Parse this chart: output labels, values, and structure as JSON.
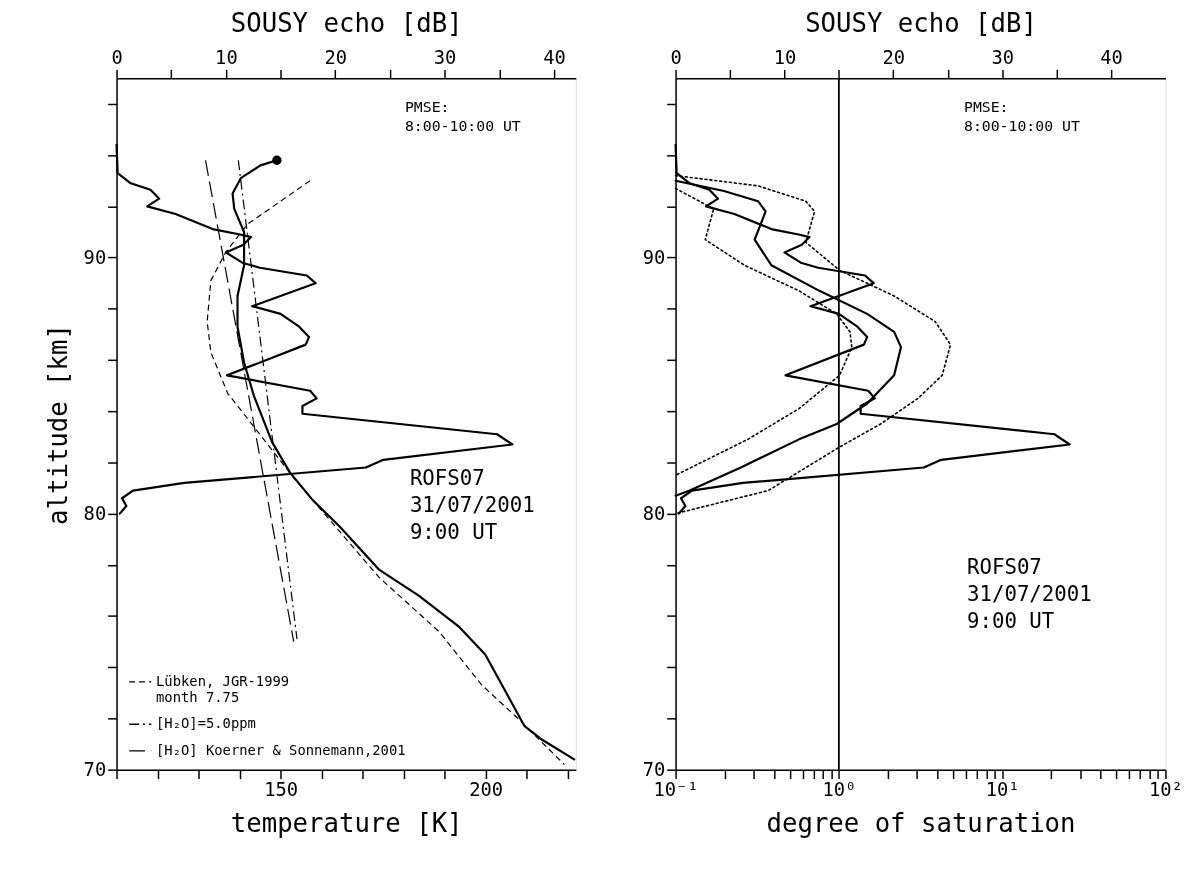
{
  "chart_data": [
    {
      "type": "line",
      "xlabel": "temperature [K]",
      "x2label": "SOUSY echo [dB]",
      "ylabel": "altitude [km]",
      "xlim": [
        110,
        222
      ],
      "xticks": [
        {
          "value": 110,
          "label": null
        },
        {
          "value": 120,
          "label": null
        },
        {
          "value": 130,
          "label": null
        },
        {
          "value": 140,
          "label": null
        },
        150,
        {
          "value": 160,
          "label": null
        },
        {
          "value": 170,
          "label": null
        },
        {
          "value": 180,
          "label": null
        },
        {
          "value": 190,
          "label": null
        },
        200,
        {
          "value": 210,
          "label": null
        },
        {
          "value": 220,
          "label": null
        }
      ],
      "x2lim": [
        0,
        42
      ],
      "x2ticks": [
        0,
        {
          "value": 5,
          "label": null
        },
        10,
        {
          "value": 15,
          "label": null
        },
        20,
        {
          "value": 25,
          "label": null
        },
        30,
        {
          "value": 35,
          "label": null
        },
        40
      ],
      "ylim": [
        70,
        97
      ],
      "yticks": [
        70,
        {
          "value": 72,
          "label": null
        },
        {
          "value": 74,
          "label": null
        },
        {
          "value": 76,
          "label": null
        },
        {
          "value": 78,
          "label": null
        },
        80,
        {
          "value": 82,
          "label": null
        },
        {
          "value": 84,
          "label": null
        },
        {
          "value": 86,
          "label": null
        },
        {
          "value": 88,
          "label": null
        },
        90,
        {
          "value": 92,
          "label": null
        },
        {
          "value": 94,
          "label": null
        },
        {
          "value": 96,
          "label": null
        }
      ],
      "grid": false,
      "legend": "bottom left",
      "annotations": [
        "PMSE:\n 8:00-10:00 UT",
        "ROFS07\n31/07/2001\n 9:00 UT"
      ],
      "series": [
        {
          "color": "#000000",
          "line_style": "solid",
          "axis": "x2",
          "x": [
            0,
            0.1,
            1.3,
            3.1,
            3.9,
            2.8,
            5.4,
            8.9,
            11.3,
            12.3,
            11.6,
            10.0,
            11.5,
            13.1,
            17.4,
            18.2,
            12.4,
            15.0,
            16.7,
            17.6,
            17.3,
            10.1,
            17.7,
            18.3,
            17.0,
            17.0,
            34.8,
            36.2,
            24.4,
            22.8,
            6.2,
            1.5,
            0.5,
            0.9,
            0.3
          ],
          "values": [
            94.4,
            93.3,
            92.9,
            92.65,
            92.3,
            92.0,
            91.7,
            91.1,
            90.9,
            90.8,
            90.5,
            90.2,
            89.8,
            89.6,
            89.3,
            89.0,
            88.1,
            87.8,
            87.3,
            86.9,
            86.6,
            85.4,
            84.8,
            84.5,
            84.2,
            83.9,
            83.1,
            82.7,
            82.1,
            81.8,
            81.2,
            80.9,
            80.6,
            80.3,
            80.0
          ]
        },
        {
          "color": "#000000",
          "line_style": "solid",
          "x": [
            149.1,
            145.1,
            140.3,
            138.3,
            138.7,
            141.1,
            141.1,
            139.5,
            139.5,
            141.1,
            143.5,
            147.9,
            152.3,
            158.0,
            164.4,
            174.1,
            183.7,
            193.4,
            199.9,
            204.7,
            209.5,
            213.5,
            221.6
          ],
          "values": [
            93.8,
            93.6,
            93.1,
            92.5,
            91.9,
            91.0,
            89.7,
            88.5,
            87.3,
            85.9,
            84.6,
            82.8,
            81.6,
            80.5,
            79.5,
            77.8,
            76.8,
            75.6,
            74.5,
            73.1,
            71.7,
            71.2,
            70.4
          ]
        },
        {
          "type": "scatter",
          "color": "#000000",
          "marker": "circle",
          "x": [
            149.1
          ],
          "values": [
            93.8
          ]
        },
        {
          "name": "Lübken, JGR-1999\nmonth 7.75",
          "color": "#000000",
          "line_style": "dashed",
          "x": [
            157.2,
            141.9,
            136.6,
            133.0,
            132.1,
            133.0,
            137.1,
            145.9,
            153.2,
            161.2,
            174.1,
            188.6,
            199.1,
            207.9,
            219.2
          ],
          "values": [
            93.0,
            91.3,
            90.2,
            89.1,
            87.5,
            86.3,
            84.7,
            82.9,
            81.4,
            79.9,
            77.5,
            75.4,
            73.3,
            72.0,
            70.2
          ]
        },
        {
          "name": "[H₂O]=5.0ppm",
          "color": "#000000",
          "line_style": "dashdot",
          "x": [
            139.7,
            154.0
          ],
          "values": [
            93.8,
            75.1
          ]
        },
        {
          "name": "[H₂O] Koerner & Sonnemann,2001",
          "color": "#000000",
          "line_style": "longdash",
          "x": [
            131.7,
            153.2
          ],
          "values": [
            93.8,
            75.0
          ]
        }
      ]
    },
    {
      "type": "line",
      "xlabel": "degree of saturation",
      "x2label": "SOUSY echo [dB]",
      "log": "x",
      "xlim": [
        0.1,
        100
      ],
      "xticks": [
        {
          "value": 0.1,
          "label": "10⁻¹"
        },
        {
          "value": 0.2,
          "label": null
        },
        {
          "value": 0.3,
          "label": null
        },
        {
          "value": 0.4,
          "label": null
        },
        {
          "value": 0.5,
          "label": null
        },
        {
          "value": 0.6,
          "label": null
        },
        {
          "value": 0.7,
          "label": null
        },
        {
          "value": 0.8,
          "label": null
        },
        {
          "value": 0.9,
          "label": null
        },
        {
          "value": 1,
          "label": "10⁰"
        },
        {
          "value": 2,
          "label": null
        },
        {
          "value": 3,
          "label": null
        },
        {
          "value": 4,
          "label": null
        },
        {
          "value": 5,
          "label": null
        },
        {
          "value": 6,
          "label": null
        },
        {
          "value": 7,
          "label": null
        },
        {
          "value": 8,
          "label": null
        },
        {
          "value": 9,
          "label": null
        },
        {
          "value": 10,
          "label": "10¹"
        },
        {
          "value": 20,
          "label": null
        },
        {
          "value": 30,
          "label": null
        },
        {
          "value": 40,
          "label": null
        },
        {
          "value": 50,
          "label": null
        },
        {
          "value": 60,
          "label": null
        },
        {
          "value": 70,
          "label": null
        },
        {
          "value": 80,
          "label": null
        },
        {
          "value": 90,
          "label": null
        },
        {
          "value": 100,
          "label": "10²"
        }
      ],
      "x2lim": [
        0,
        45
      ],
      "x2ticks": [
        0,
        {
          "value": 5,
          "label": null
        },
        10,
        {
          "value": 15,
          "label": null
        },
        20,
        {
          "value": 25,
          "label": null
        },
        30,
        {
          "value": 35,
          "label": null
        },
        40
      ],
      "ylim": [
        70,
        97
      ],
      "yticks": [
        70,
        {
          "value": 72,
          "label": null
        },
        {
          "value": 74,
          "label": null
        },
        {
          "value": 76,
          "label": null
        },
        {
          "value": 78,
          "label": null
        },
        80,
        {
          "value": 82,
          "label": null
        },
        {
          "value": 84,
          "label": null
        },
        {
          "value": 86,
          "label": null
        },
        {
          "value": 88,
          "label": null
        },
        90,
        {
          "value": 92,
          "label": null
        },
        {
          "value": 94,
          "label": null
        },
        {
          "value": 96,
          "label": null
        }
      ],
      "grid": false,
      "ref_lines": [
        {
          "axis": "x",
          "value": 1,
          "color": "#000000"
        }
      ],
      "annotations": [
        "PMSE:\n 8:00-10:00 UT",
        "ROFS07\n31/07/2001\n 9:00 UT"
      ],
      "series": [
        {
          "color": "#000000",
          "line_style": "solid",
          "axis": "x2",
          "x": [
            0,
            0.1,
            1.3,
            3.1,
            3.9,
            2.8,
            5.4,
            8.9,
            11.3,
            12.3,
            11.6,
            10.0,
            11.5,
            13.1,
            17.4,
            18.2,
            12.4,
            15.0,
            16.7,
            17.6,
            17.3,
            10.1,
            17.7,
            18.3,
            17.0,
            17.0,
            34.8,
            36.2,
            24.4,
            22.8,
            6.2,
            1.5,
            0.5,
            0.9,
            0.3
          ],
          "values": [
            94.4,
            93.3,
            92.9,
            92.65,
            92.3,
            92.0,
            91.7,
            91.1,
            90.9,
            90.8,
            90.5,
            90.2,
            89.8,
            89.6,
            89.3,
            89.0,
            88.1,
            87.8,
            87.3,
            86.9,
            86.6,
            85.4,
            84.8,
            84.5,
            84.2,
            83.9,
            83.1,
            82.7,
            82.1,
            81.8,
            81.2,
            80.9,
            80.6,
            80.3,
            80.0
          ]
        },
        {
          "color": "#000000",
          "line_style": "solid",
          "x": [
            0.1,
            0.198,
            0.32,
            0.356,
            0.305,
            0.386,
            0.76,
            1.49,
            2.18,
            2.4,
            2.18,
            1.49,
            0.97,
            0.57,
            0.251,
            0.122,
            0.1
          ],
          "values": [
            93.0,
            92.6,
            92.2,
            91.8,
            90.7,
            89.7,
            88.7,
            87.8,
            87.1,
            86.5,
            85.4,
            84.3,
            83.5,
            82.9,
            81.8,
            80.9,
            80.7
          ]
        },
        {
          "color": "#000000",
          "line_style": "dotted",
          "x": [
            0.1,
            0.32,
            0.627,
            0.71,
            0.627,
            1.01,
            2.18,
            3.89,
            4.83,
            4.29,
            3.05,
            1.8,
            1.01,
            0.369,
            0.1
          ],
          "values": [
            93.2,
            92.8,
            92.2,
            91.8,
            90.6,
            89.5,
            88.5,
            87.5,
            86.6,
            85.4,
            84.5,
            83.5,
            82.6,
            80.9,
            80.0
          ]
        },
        {
          "color": "#000000",
          "line_style": "dotted",
          "x": [
            0.1,
            0.171,
            0.152,
            0.264,
            0.57,
            0.97,
            1.17,
            1.2,
            1.01,
            0.57,
            0.277,
            0.1
          ],
          "values": [
            92.7,
            91.9,
            90.7,
            89.7,
            88.7,
            87.8,
            87.1,
            86.5,
            85.4,
            84.1,
            82.9,
            81.5
          ]
        }
      ]
    }
  ]
}
